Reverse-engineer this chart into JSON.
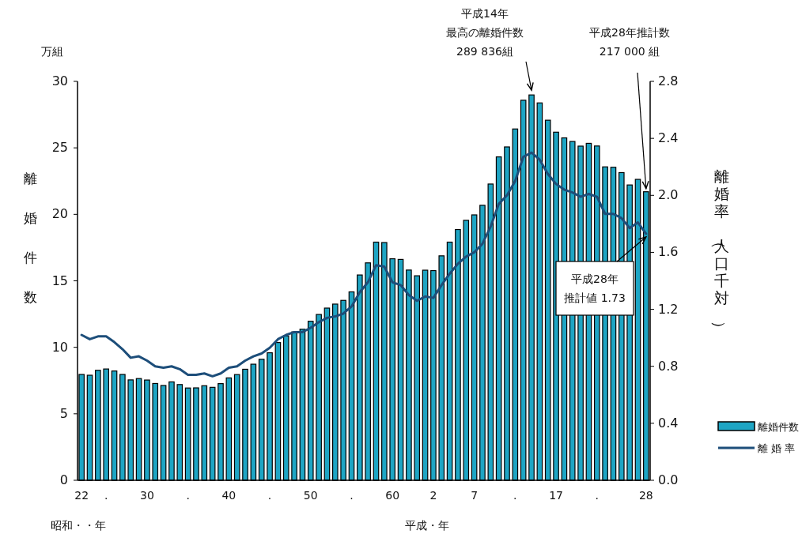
{
  "chart_data": {
    "type": "bar",
    "categories": [
      "22",
      null,
      null,
      ".",
      null,
      null,
      null,
      null,
      "30",
      null,
      null,
      null,
      null,
      ".",
      null,
      null,
      null,
      null,
      "40",
      null,
      null,
      null,
      null,
      ".",
      null,
      null,
      null,
      null,
      "50",
      null,
      null,
      null,
      null,
      ".",
      null,
      null,
      null,
      null,
      "60",
      null,
      null,
      null,
      null,
      "2",
      null,
      null,
      null,
      null,
      "7",
      null,
      null,
      null,
      null,
      ".",
      null,
      null,
      null,
      null,
      "17",
      null,
      null,
      null,
      null,
      ".",
      null,
      null,
      null,
      null,
      null,
      "28"
    ],
    "series": [
      {
        "name": "離婚件数",
        "color": "#1ea5c4",
        "values": [
          7.96,
          7.9,
          8.27,
          8.37,
          8.22,
          7.96,
          7.55,
          7.65,
          7.54,
          7.28,
          7.13,
          7.4,
          7.2,
          6.94,
          6.95,
          7.11,
          6.99,
          7.27,
          7.7,
          7.95,
          8.35,
          8.73,
          9.1,
          9.59,
          10.36,
          10.86,
          11.16,
          11.36,
          11.96,
          12.47,
          12.95,
          13.25,
          13.53,
          14.17,
          15.44,
          16.35,
          17.91,
          17.88,
          16.66,
          16.61,
          15.81,
          15.38,
          15.8,
          15.77,
          16.88,
          17.91,
          18.86,
          19.55,
          19.96,
          20.68,
          22.28,
          24.32,
          25.07,
          26.42,
          28.58,
          28.98,
          28.38,
          27.08,
          26.18,
          25.75,
          25.48,
          25.13,
          25.34,
          25.14,
          23.57,
          23.54,
          23.14,
          22.21,
          22.63,
          21.7
        ]
      },
      {
        "name": "離 婚 率",
        "type": "line",
        "axis": "y2",
        "color": "#1d4e7a",
        "values": [
          1.02,
          0.99,
          1.01,
          1.01,
          0.97,
          0.92,
          0.86,
          0.87,
          0.84,
          0.8,
          0.79,
          0.8,
          0.78,
          0.74,
          0.74,
          0.75,
          0.73,
          0.75,
          0.79,
          0.8,
          0.84,
          0.87,
          0.89,
          0.93,
          0.99,
          1.02,
          1.04,
          1.04,
          1.07,
          1.11,
          1.14,
          1.15,
          1.17,
          1.22,
          1.32,
          1.39,
          1.51,
          1.5,
          1.39,
          1.37,
          1.3,
          1.26,
          1.29,
          1.28,
          1.37,
          1.45,
          1.52,
          1.57,
          1.6,
          1.66,
          1.78,
          1.94,
          2.0,
          2.1,
          2.27,
          2.3,
          2.25,
          2.15,
          2.08,
          2.04,
          2.02,
          1.99,
          2.01,
          1.99,
          1.87,
          1.87,
          1.84,
          1.77,
          1.81,
          1.73
        ]
      }
    ],
    "ylabel": "離婚件数",
    "y2label": "離婚率（人口千対）",
    "xlabel": "昭和・・年",
    "ylim": [
      0,
      30
    ],
    "yticks": [
      0,
      5,
      10,
      15,
      20,
      25,
      30
    ],
    "y2lim": [
      0,
      2.8
    ],
    "y2ticks": [
      {
        "value": 0,
        "label": "0.0"
      },
      0.4,
      0.8,
      1.2,
      1.6,
      {
        "value": 2,
        "label": "2.0"
      },
      2.4,
      2.8
    ],
    "legend": "right",
    "grid": false,
    "marker": "none",
    "line_style": "solid",
    "annotations": [
      "平成14年",
      "最高の離婚件数",
      "289 836組",
      "平成28年推計数",
      "217 000 組",
      "平成28年",
      "推計値 1.73",
      "万組",
      "平成・年"
    ]
  }
}
